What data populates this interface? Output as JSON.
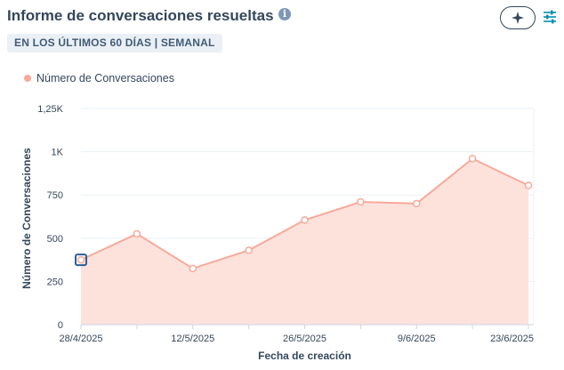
{
  "header": {
    "title": "Informe de conversaciones resueltas",
    "info_icon": "info-circle-icon",
    "ai_icon": "sparkle-icon",
    "filter_icon": "filter-sliders-icon"
  },
  "badge": {
    "label": "EN LOS ÚLTIMOS 60 DÍAS | SEMANAL"
  },
  "legend": {
    "label": "Número de Conversaciones"
  },
  "colors": {
    "line": "#f8a99a",
    "fill": "#fde2dc",
    "text": "#33475b",
    "grid": "#eaf0f6",
    "highlight_marker": "#2d5f9a"
  },
  "chart_data": {
    "type": "area",
    "x": [
      "28/4/2025",
      "5/5/2025",
      "12/5/2025",
      "19/5/2025",
      "26/5/2025",
      "2/6/2025",
      "9/6/2025",
      "16/6/2025",
      "23/6/2025"
    ],
    "series": [
      {
        "name": "Número de Conversaciones",
        "values": [
          375,
          525,
          325,
          430,
          605,
          710,
          700,
          960,
          805
        ]
      }
    ],
    "xlabel": "Fecha de creación",
    "ylabel": "Número de Conversaciones",
    "ylim": [
      0,
      1250
    ],
    "yticks": [
      0,
      250,
      500,
      750,
      1000,
      1250
    ],
    "ytick_labels": [
      "0",
      "250",
      "500",
      "750",
      "1K",
      "1,25K"
    ],
    "xtick_labels": [
      "28/4/2025",
      "12/5/2025",
      "26/5/2025",
      "9/6/2025",
      "23/6/2025"
    ],
    "grid": true,
    "legend_position": "top-left",
    "highlighted_point": 0
  }
}
